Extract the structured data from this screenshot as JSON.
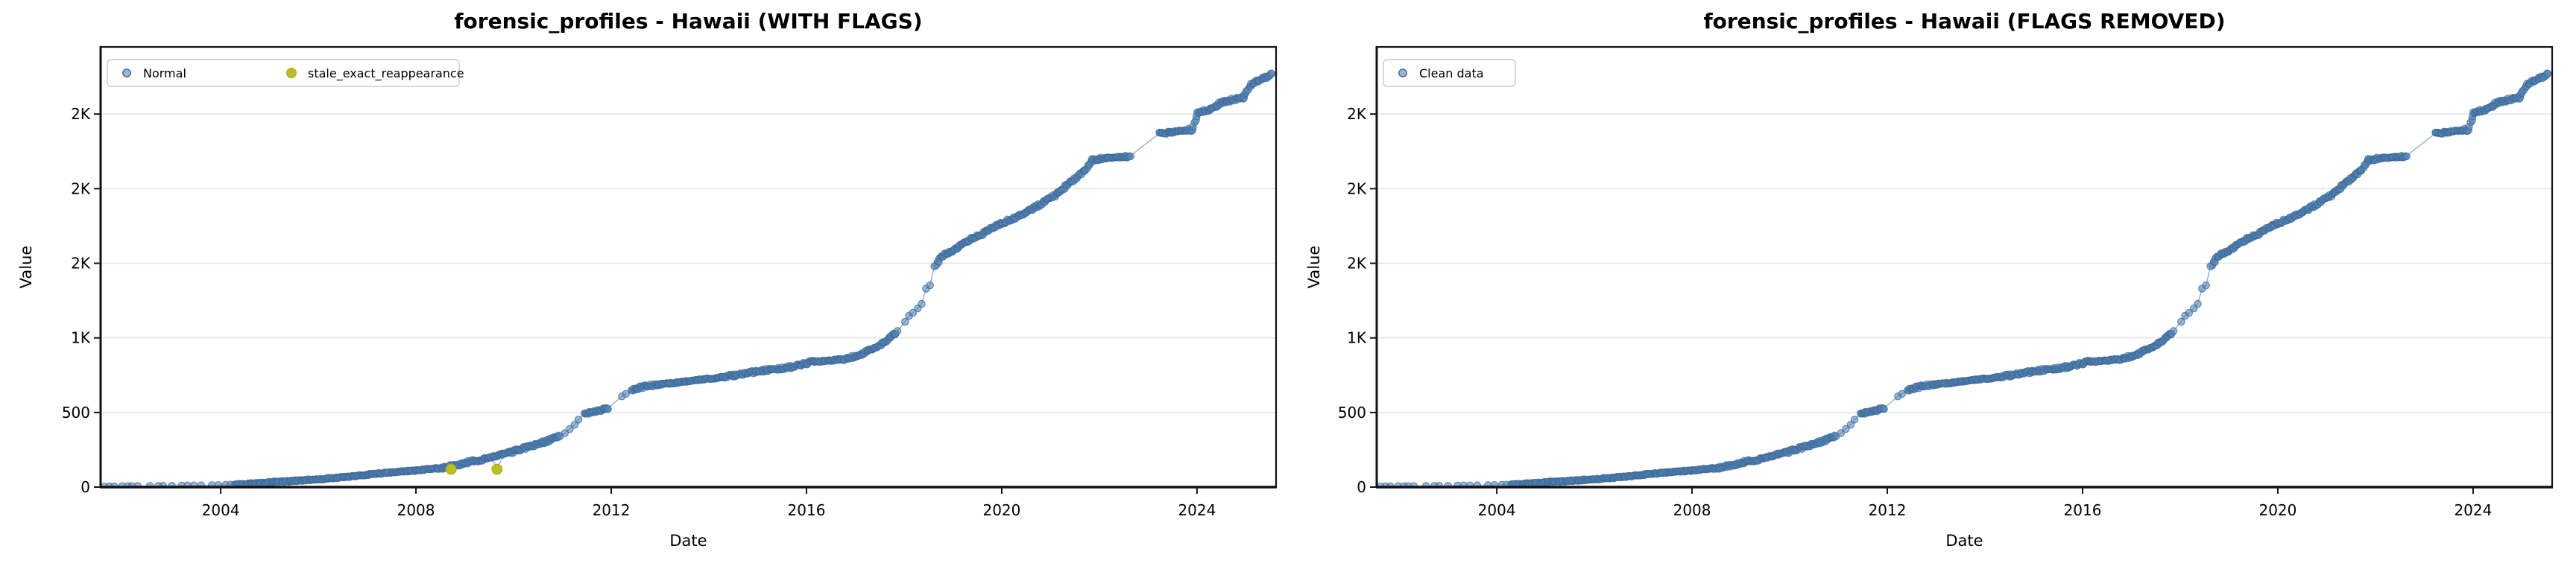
{
  "figure": {
    "background": "#ffffff"
  },
  "chart_data": {
    "type": "scatter",
    "charts": [
      {
        "title": "forensic_profiles - Hawaii (WITH FLAGS)",
        "legend": [
          {
            "label": "Normal",
            "type": "normal"
          },
          {
            "label": "stale_exact_reappearance",
            "type": "flag"
          }
        ],
        "include_flags": true
      },
      {
        "title": "forensic_profiles - Hawaii (FLAGS REMOVED)",
        "legend": [
          {
            "label": "Clean data",
            "type": "normal"
          }
        ],
        "include_flags": false
      }
    ],
    "xlabel": "Date",
    "ylabel": "Value",
    "x_ticks": [
      {
        "v": 2004,
        "label": "2004"
      },
      {
        "v": 2008,
        "label": "2008"
      },
      {
        "v": 2012,
        "label": "2012"
      },
      {
        "v": 2016,
        "label": "2016"
      },
      {
        "v": 2020,
        "label": "2020"
      },
      {
        "v": 2024,
        "label": "2024"
      }
    ],
    "y_ticks": [
      {
        "v": 0,
        "label": "0"
      },
      {
        "v": 500,
        "label": "500"
      },
      {
        "v": 1000,
        "label": "1K"
      },
      {
        "v": 1500,
        "label": "2K"
      },
      {
        "v": 2000,
        "label": "2K"
      },
      {
        "v": 2500,
        "label": "2K"
      }
    ],
    "xlim": [
      2001.54,
      2025.62
    ],
    "ylim": [
      0,
      2950
    ],
    "grid": true,
    "legend_position": "top-left",
    "anchors": [
      [
        2004.28,
        17
      ],
      [
        2004.6,
        23
      ],
      [
        2004.9,
        30
      ],
      [
        2005.2,
        36
      ],
      [
        2005.5,
        42
      ],
      [
        2005.8,
        48
      ],
      [
        2006.1,
        55
      ],
      [
        2006.4,
        63
      ],
      [
        2006.7,
        72
      ],
      [
        2007.0,
        83
      ],
      [
        2007.3,
        93
      ],
      [
        2007.6,
        100
      ],
      [
        2007.9,
        108
      ],
      [
        2008.2,
        118
      ],
      [
        2008.5,
        128
      ],
      [
        2008.75,
        142
      ],
      [
        2009.0,
        162
      ],
      [
        2009.3,
        182
      ],
      [
        2009.55,
        198
      ],
      [
        2009.8,
        220
      ],
      [
        2010.1,
        250
      ],
      [
        2010.4,
        280
      ],
      [
        2010.7,
        312
      ],
      [
        2010.95,
        345
      ],
      [
        2011.45,
        487
      ],
      [
        2011.6,
        505
      ],
      [
        2011.75,
        515
      ],
      [
        2011.93,
        528
      ],
      [
        2012.42,
        645
      ],
      [
        2012.6,
        668
      ],
      [
        2012.85,
        682
      ],
      [
        2013.1,
        692
      ],
      [
        2013.4,
        702
      ],
      [
        2013.7,
        714
      ],
      [
        2014.0,
        726
      ],
      [
        2014.3,
        737
      ],
      [
        2014.65,
        757
      ],
      [
        2015.0,
        775
      ],
      [
        2015.4,
        792
      ],
      [
        2015.8,
        812
      ],
      [
        2016.1,
        838
      ],
      [
        2016.5,
        848
      ],
      [
        2016.85,
        862
      ],
      [
        2017.1,
        888
      ],
      [
        2017.35,
        925
      ],
      [
        2017.6,
        972
      ],
      [
        2017.85,
        1040
      ],
      [
        2018.66,
        1488
      ],
      [
        2018.78,
        1548
      ],
      [
        2018.95,
        1578
      ],
      [
        2019.15,
        1618
      ],
      [
        2019.4,
        1668
      ],
      [
        2019.65,
        1705
      ],
      [
        2019.9,
        1755
      ],
      [
        2020.2,
        1795
      ],
      [
        2020.5,
        1840
      ],
      [
        2020.8,
        1895
      ],
      [
        2021.1,
        1958
      ],
      [
        2021.4,
        2040
      ],
      [
        2021.7,
        2120
      ],
      [
        2021.85,
        2192
      ],
      [
        2022.1,
        2205
      ],
      [
        2022.35,
        2210
      ],
      [
        2022.62,
        2216
      ],
      [
        2023.22,
        2368
      ],
      [
        2023.55,
        2382
      ],
      [
        2023.9,
        2395
      ],
      [
        2024.02,
        2512
      ],
      [
        2024.3,
        2532
      ],
      [
        2024.5,
        2578
      ],
      [
        2024.75,
        2598
      ],
      [
        2024.95,
        2612
      ],
      [
        2025.12,
        2700
      ],
      [
        2025.3,
        2732
      ],
      [
        2025.55,
        2768
      ]
    ],
    "sparse_points": [
      [
        2001.62,
        4
      ],
      [
        2001.72,
        5
      ],
      [
        2001.82,
        5
      ],
      [
        2001.98,
        6
      ],
      [
        2002.1,
        6
      ],
      [
        2002.18,
        7
      ],
      [
        2002.3,
        7
      ],
      [
        2002.55,
        8
      ],
      [
        2002.72,
        8
      ],
      [
        2002.82,
        9
      ],
      [
        2003.0,
        9
      ],
      [
        2003.2,
        10
      ],
      [
        2003.32,
        11
      ],
      [
        2003.45,
        11
      ],
      [
        2003.6,
        12
      ],
      [
        2003.82,
        13
      ],
      [
        2003.95,
        14
      ],
      [
        2004.1,
        15
      ],
      [
        2004.2,
        16
      ],
      [
        2011.05,
        362
      ],
      [
        2011.15,
        390
      ],
      [
        2011.25,
        418
      ],
      [
        2011.33,
        452
      ],
      [
        2012.22,
        608
      ],
      [
        2012.3,
        625
      ],
      [
        2018.02,
        1108
      ],
      [
        2018.1,
        1148
      ],
      [
        2018.18,
        1168
      ],
      [
        2018.28,
        1198
      ],
      [
        2018.36,
        1228
      ],
      [
        2018.45,
        1330
      ],
      [
        2018.53,
        1352
      ],
      [
        2018.62,
        1480
      ]
    ],
    "gaps": [
      [
        2010.96,
        2011.44
      ],
      [
        2011.94,
        2012.41
      ],
      [
        2017.87,
        2018.65
      ],
      [
        2022.64,
        2023.21
      ]
    ],
    "flagged_points": [
      [
        2008.72,
        120
      ],
      [
        2009.66,
        120
      ]
    ],
    "colors": {
      "normal_fill": "#5585b5",
      "normal_edge": "#3c6898",
      "line": "#92b0d2",
      "flag": "#bcbd22",
      "flag_edge": "#a8aa1d",
      "grid": "#e3e3e3",
      "spine": "#121212",
      "legend_border": "#cccccc",
      "text": "#000000"
    },
    "render_hints": {
      "step_years": 0.022,
      "seed": 42,
      "jitter_value": 9,
      "flat_jitter": 4,
      "x_jitter": 0.012,
      "dot_radius": 4.7,
      "flag_radius": 6.9
    }
  }
}
